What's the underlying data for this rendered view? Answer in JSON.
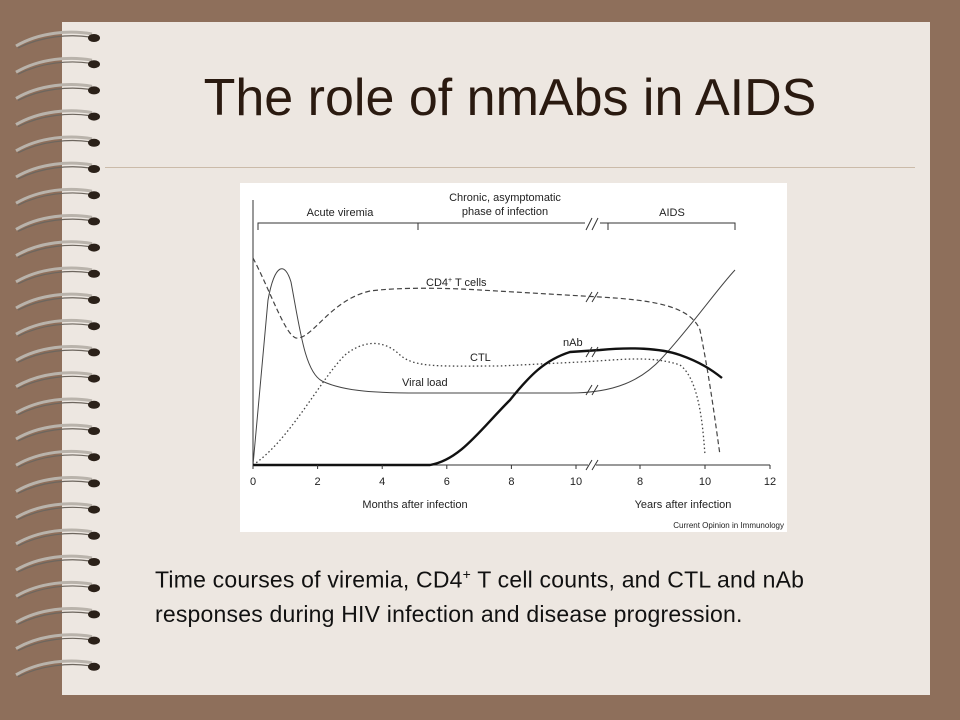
{
  "slide": {
    "title": "The role of nmAbs in AIDS",
    "figure": {
      "phases": [
        "Acute viremia",
        "Chronic, asymptomatic",
        "phase of infection",
        "AIDS"
      ],
      "curve_labels": {
        "cd4": {
          "main": "CD4",
          "sup": "+",
          "rest": " T cells"
        },
        "ctl": "CTL",
        "nab": "nAb",
        "viral": "Viral load"
      },
      "month_ticks": [
        "0",
        "2",
        "4",
        "6",
        "8",
        "10"
      ],
      "year_ticks": [
        "8",
        "10",
        "12"
      ],
      "x_title_months": "Months after infection",
      "x_title_years": "Years after infection",
      "credit": "Current Opinion in Immunology"
    },
    "caption": {
      "before": "Time courses of viremia, CD4",
      "sup": "+",
      "after": " T cell counts, and CTL and nAb responses during HIV infection and disease progression."
    }
  }
}
